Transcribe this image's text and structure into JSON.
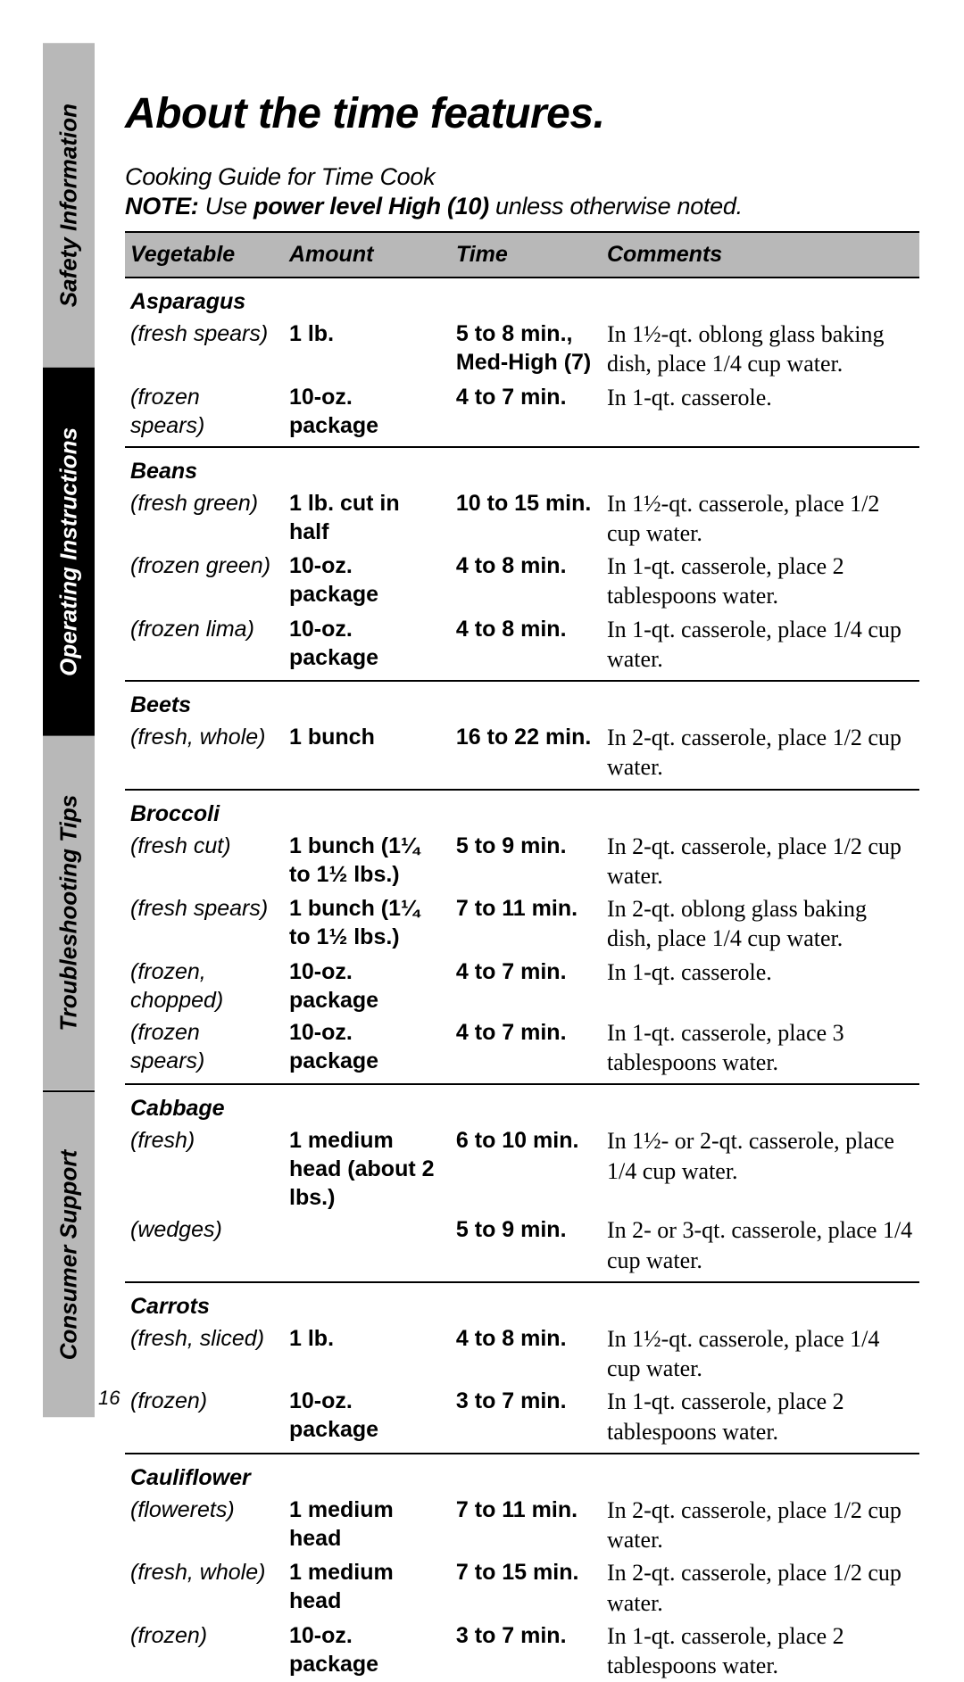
{
  "sidebar": {
    "tabs": [
      {
        "label": "Safety Information",
        "style": "gray",
        "flex": 1.0
      },
      {
        "label": "Operating Instructions",
        "style": "black",
        "flex": 1.15
      },
      {
        "label": "Troubleshooting Tips",
        "style": "gray",
        "flex": 1.1
      },
      {
        "label": "Consumer Support",
        "style": "gray",
        "flex": 1.0
      }
    ]
  },
  "page": {
    "title": "About the time features.",
    "subtitle": "Cooking Guide for Time Cook",
    "note_prefix": "NOTE:",
    "note_mid": " Use ",
    "note_bold": "power level High (10)",
    "note_suffix": " unless otherwise noted.",
    "page_number": "16"
  },
  "columns": {
    "vegetable": "Vegetable",
    "amount": "Amount",
    "time": "Time",
    "comments": "Comments"
  },
  "groups": [
    {
      "name": "Asparagus",
      "rows": [
        {
          "variety": "(fresh spears)",
          "amount": "1 lb.",
          "time": "5 to 8 min., Med-High (7)",
          "comment": "In 1½-qt. oblong glass baking dish, place 1/4 cup water."
        },
        {
          "variety": "(frozen spears)",
          "amount": "10-oz. package",
          "time": "4 to 7 min.",
          "comment": "In 1-qt. casserole."
        }
      ]
    },
    {
      "name": "Beans",
      "rows": [
        {
          "variety": "(fresh green)",
          "amount": "1 lb. cut in half",
          "time": "10 to 15 min.",
          "comment": "In 1½-qt. casserole, place 1/2 cup water."
        },
        {
          "variety": "(frozen green)",
          "amount": "10-oz. package",
          "time": "4 to 8 min.",
          "comment": "In 1-qt. casserole, place 2 tablespoons water."
        },
        {
          "variety": "(frozen lima)",
          "amount": "10-oz. package",
          "time": "4 to 8 min.",
          "comment": "In 1-qt. casserole, place 1/4 cup water."
        }
      ]
    },
    {
      "name": "Beets",
      "rows": [
        {
          "variety": "(fresh, whole)",
          "amount": "1 bunch",
          "time": "16 to 22 min.",
          "comment": "In 2-qt. casserole, place 1/2 cup water."
        }
      ]
    },
    {
      "name": "Broccoli",
      "rows": [
        {
          "variety": "(fresh cut)",
          "amount": "1 bunch (1¼ to 1½ lbs.)",
          "time": "5 to 9 min.",
          "comment": "In 2-qt. casserole, place 1/2 cup water."
        },
        {
          "variety": "(fresh spears)",
          "amount": "1 bunch (1¼ to 1½ lbs.)",
          "time": "7 to 11 min.",
          "comment": "In 2-qt. oblong glass baking dish, place 1/4 cup water."
        },
        {
          "variety": "(frozen, chopped)",
          "amount": "10-oz. package",
          "time": "4 to 7 min.",
          "comment": "In 1-qt. casserole."
        },
        {
          "variety": "(frozen spears)",
          "amount": "10-oz. package",
          "time": "4 to 7 min.",
          "comment": "In 1-qt. casserole, place 3 tablespoons water."
        }
      ]
    },
    {
      "name": "Cabbage",
      "rows": [
        {
          "variety": "(fresh)",
          "amount": "1 medium head (about 2 lbs.)",
          "time": "6 to 10 min.",
          "comment": "In 1½- or 2-qt. casserole, place 1/4 cup water."
        },
        {
          "variety": "(wedges)",
          "amount": "",
          "time": "5 to 9 min.",
          "comment": "In 2- or 3-qt. casserole, place 1/4 cup water."
        }
      ]
    },
    {
      "name": "Carrots",
      "rows": [
        {
          "variety": "(fresh, sliced)",
          "amount": "1 lb.",
          "time": "4 to 8 min.",
          "comment": "In 1½-qt. casserole, place 1/4 cup water."
        },
        {
          "variety": "(frozen)",
          "amount": "10-oz. package",
          "time": "3 to 7 min.",
          "comment": "In 1-qt. casserole, place 2 tablespoons water."
        }
      ]
    },
    {
      "name": "Cauliflower",
      "rows": [
        {
          "variety": "(flowerets)",
          "amount": "1 medium head",
          "time": "7 to 11 min.",
          "comment": "In 2-qt. casserole, place 1/2 cup water."
        },
        {
          "variety": "(fresh, whole)",
          "amount": "1 medium head",
          "time": "7 to 15 min.",
          "comment": "In 2-qt. casserole, place 1/2 cup water."
        },
        {
          "variety": "(frozen)",
          "amount": "10-oz. package",
          "time": "3 to 7 min.",
          "comment": "In 1-qt. casserole, place 2 tablespoons water."
        }
      ],
      "no_trailing_rule": true
    }
  ]
}
